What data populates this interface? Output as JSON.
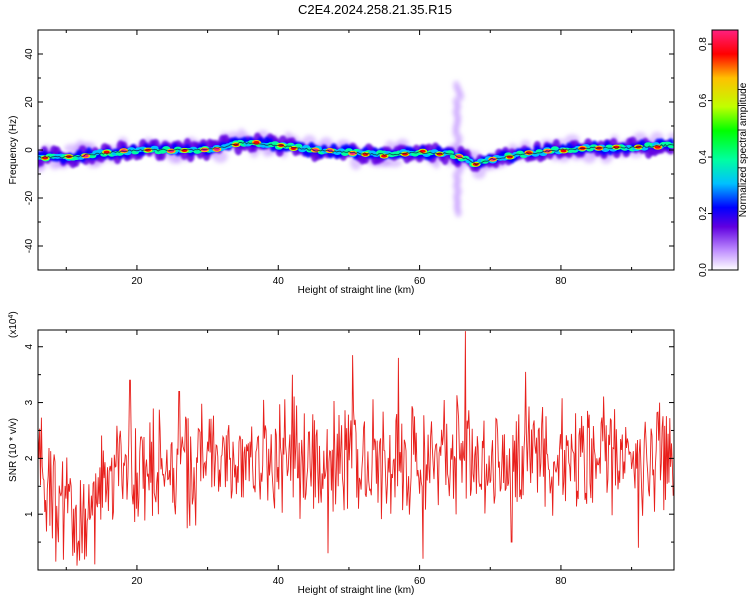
{
  "title": "C2E4.2024.258.21.35.R15",
  "chart_data": [
    {
      "type": "heatmap",
      "xlabel": "Height of straight line (km)",
      "ylabel": "Frequency (Hz)",
      "xlim": [
        6,
        96
      ],
      "ylim": [
        -50,
        50
      ],
      "x_ticks": [
        20,
        40,
        60,
        80
      ],
      "y_ticks": [
        -40,
        -20,
        0,
        20,
        40
      ],
      "colorbar": {
        "label": "Normalized spectral amplitude",
        "range": [
          0,
          0.85
        ],
        "ticks": [
          "0.0",
          "0.2",
          "0.4",
          "0.6",
          "0.8"
        ],
        "colors": [
          "#ffffff",
          "#c090ff",
          "#6000e0",
          "#0000ff",
          "#00c0ff",
          "#00ffa0",
          "#00ff00",
          "#c0ff00",
          "#ffc000",
          "#ff0000",
          "#ff2080"
        ]
      },
      "ridge": {
        "x": [
          6,
          10,
          15,
          20,
          25,
          30,
          35,
          40,
          45,
          50,
          55,
          60,
          64,
          66,
          68,
          70,
          75,
          80,
          85,
          90,
          95
        ],
        "freq": [
          -3,
          -3,
          -1.5,
          0,
          0,
          0,
          3,
          2,
          0,
          -1,
          -2,
          -1,
          -1.5,
          -3,
          -6,
          -4,
          -1.5,
          0,
          1,
          1,
          2
        ]
      },
      "burst": {
        "x": 65.5,
        "freq_range": [
          -26,
          28
        ]
      }
    },
    {
      "type": "line",
      "xlabel": "Height of straight line (km)",
      "ylabel": "SNR (10 * v/v)",
      "scale_note": "(x10",
      "scale_exp": "4",
      "scale_close": ")",
      "xlim": [
        6,
        96
      ],
      "ylim": [
        0,
        4.3
      ],
      "x_ticks": [
        20,
        40,
        60,
        80
      ],
      "y_ticks": [
        1,
        2,
        3,
        4
      ],
      "series": [
        {
          "color": "#e8201c",
          "x": [
            6,
            9,
            12,
            15,
            18,
            21,
            24,
            27,
            30,
            33,
            36,
            39,
            42,
            45,
            48,
            51,
            54,
            57,
            60,
            63,
            66,
            69,
            72,
            75,
            78,
            81,
            84,
            87,
            90,
            93,
            96
          ],
          "y": [
            2.2,
            1.2,
            0.8,
            1.6,
            1.8,
            1.7,
            2.1,
            1.9,
            1.9,
            2.0,
            2.0,
            2.0,
            2.1,
            1.9,
            2.0,
            2.1,
            1.9,
            2.0,
            1.9,
            2.0,
            2.1,
            1.9,
            2.0,
            2.0,
            2.0,
            2.0,
            1.9,
            2.0,
            2.0,
            2.0,
            2.0
          ],
          "peaks": [
            [
              19,
              3.4
            ],
            [
              26,
              3.2
            ],
            [
              42,
              3.5
            ],
            [
              50.5,
              3.85
            ],
            [
              57,
              3.8
            ],
            [
              66.5,
              4.3
            ],
            [
              75,
              3.55
            ],
            [
              94,
              3.0
            ]
          ],
          "dips": [
            [
              8.5,
              0.15
            ],
            [
              14,
              0.1
            ],
            [
              47,
              0.3
            ],
            [
              60.5,
              0.2
            ],
            [
              73,
              0.5
            ],
            [
              91,
              0.4
            ]
          ]
        }
      ]
    }
  ]
}
